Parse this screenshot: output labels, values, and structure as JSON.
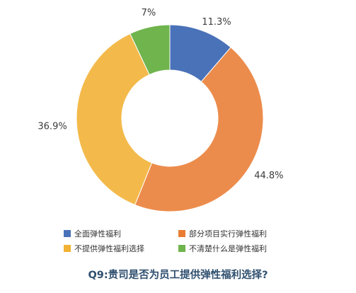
{
  "chart_data": {
    "type": "pie",
    "donut": true,
    "categories": [
      "全面弹性福利",
      "部分项目实行弹性福利",
      "不提供弹性福利选择",
      "不清楚什么是弹性福利"
    ],
    "values": [
      11.3,
      44.8,
      36.9,
      7
    ],
    "value_labels": [
      "11.3%",
      "44.8%",
      "36.9%",
      "7%"
    ],
    "colors": [
      "#4a72b8",
      "#ea7d34",
      "#f2b133",
      "#6fb44d"
    ],
    "legend_position": "bottom",
    "title": "Q9:贵司是否为员工提供弹性福利选择?"
  }
}
